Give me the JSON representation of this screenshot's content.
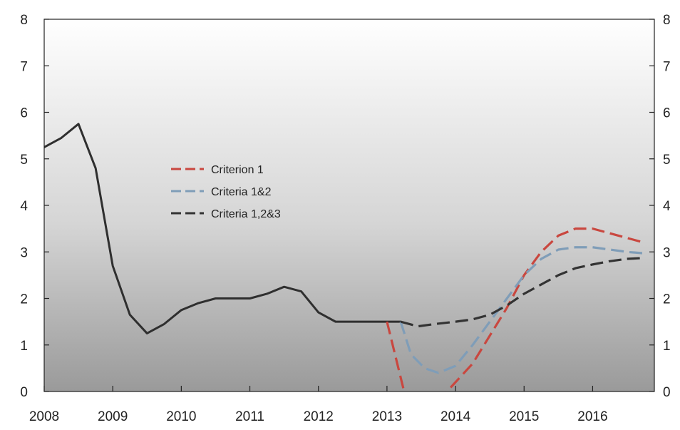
{
  "chart_data": {
    "type": "line",
    "title": "",
    "xlabel": "",
    "ylabel": "",
    "xlim": [
      2008,
      2016.9
    ],
    "ylim": [
      0,
      8
    ],
    "y_ticks": [
      0,
      1,
      2,
      3,
      4,
      5,
      6,
      7,
      8
    ],
    "x_ticks": [
      2008,
      2009,
      2010,
      2011,
      2012,
      2013,
      2014,
      2015,
      2016
    ],
    "y_tick_labels": [
      "0",
      "1",
      "2",
      "3",
      "4",
      "5",
      "6",
      "7",
      "8"
    ],
    "right_y_tick_labels": [
      "0",
      "1",
      "2",
      "3",
      "4",
      "5",
      "6",
      "7",
      "8"
    ],
    "x_tick_labels": [
      "2008",
      "2009",
      "2010",
      "2011",
      "2012",
      "2013",
      "2014",
      "2015",
      "2016"
    ],
    "grid": false,
    "legend_position": "upper-left-inside",
    "legend": [
      {
        "label": "Criterion 1",
        "color": "#c9473f",
        "dash": "dashed"
      },
      {
        "label": "Criteria 1&2",
        "color": "#7f9db8",
        "dash": "dashed"
      },
      {
        "label": "Criteria 1,2&3",
        "color": "#333333",
        "dash": "dashed"
      }
    ],
    "background_gradient": [
      "#ffffff",
      "#d4d4d4",
      "#9a9a9a"
    ],
    "series": [
      {
        "name": "",
        "color": "#2f2f2f",
        "style": "solid",
        "points": [
          [
            2008.0,
            5.25
          ],
          [
            2008.25,
            5.45
          ],
          [
            2008.5,
            5.75
          ],
          [
            2008.75,
            4.8
          ],
          [
            2009.0,
            2.7
          ],
          [
            2009.25,
            1.65
          ],
          [
            2009.5,
            1.25
          ],
          [
            2009.75,
            1.45
          ],
          [
            2010.0,
            1.75
          ],
          [
            2010.25,
            1.9
          ],
          [
            2010.5,
            2.0
          ],
          [
            2010.75,
            2.0
          ],
          [
            2011.0,
            2.0
          ],
          [
            2011.25,
            2.1
          ],
          [
            2011.5,
            2.25
          ],
          [
            2011.75,
            2.15
          ],
          [
            2012.0,
            1.7
          ],
          [
            2012.25,
            1.5
          ],
          [
            2012.5,
            1.5
          ],
          [
            2012.75,
            1.5
          ],
          [
            2013.0,
            1.5
          ],
          [
            2013.2,
            1.5
          ]
        ]
      },
      {
        "name": "Criterion 1",
        "color": "#c9473f",
        "style": "dashed",
        "points": [
          [
            2013.0,
            1.5
          ],
          [
            2013.25,
            0.0
          ],
          [
            2013.5,
            -0.3
          ],
          [
            2013.75,
            -0.2
          ],
          [
            2014.0,
            0.2
          ],
          [
            2014.25,
            0.6
          ],
          [
            2014.5,
            1.2
          ],
          [
            2014.75,
            1.8
          ],
          [
            2015.0,
            2.5
          ],
          [
            2015.25,
            3.0
          ],
          [
            2015.5,
            3.35
          ],
          [
            2015.75,
            3.5
          ],
          [
            2016.0,
            3.5
          ],
          [
            2016.25,
            3.4
          ],
          [
            2016.5,
            3.3
          ],
          [
            2016.75,
            3.2
          ]
        ]
      },
      {
        "name": "Criteria 1&2",
        "color": "#7f9db8",
        "style": "dashed",
        "points": [
          [
            2013.2,
            1.5
          ],
          [
            2013.35,
            0.8
          ],
          [
            2013.55,
            0.5
          ],
          [
            2013.75,
            0.4
          ],
          [
            2014.0,
            0.55
          ],
          [
            2014.25,
            1.0
          ],
          [
            2014.5,
            1.5
          ],
          [
            2014.75,
            2.0
          ],
          [
            2015.0,
            2.5
          ],
          [
            2015.25,
            2.85
          ],
          [
            2015.5,
            3.05
          ],
          [
            2015.75,
            3.1
          ],
          [
            2016.0,
            3.1
          ],
          [
            2016.25,
            3.05
          ],
          [
            2016.5,
            3.0
          ],
          [
            2016.75,
            2.97
          ]
        ]
      },
      {
        "name": "Criteria 1,2&3",
        "color": "#333333",
        "style": "dashed",
        "points": [
          [
            2013.2,
            1.5
          ],
          [
            2013.45,
            1.4
          ],
          [
            2013.7,
            1.45
          ],
          [
            2014.0,
            1.5
          ],
          [
            2014.25,
            1.55
          ],
          [
            2014.5,
            1.65
          ],
          [
            2014.75,
            1.85
          ],
          [
            2015.0,
            2.1
          ],
          [
            2015.25,
            2.3
          ],
          [
            2015.5,
            2.5
          ],
          [
            2015.75,
            2.65
          ],
          [
            2016.0,
            2.73
          ],
          [
            2016.25,
            2.8
          ],
          [
            2016.5,
            2.85
          ],
          [
            2016.75,
            2.87
          ]
        ]
      }
    ]
  }
}
